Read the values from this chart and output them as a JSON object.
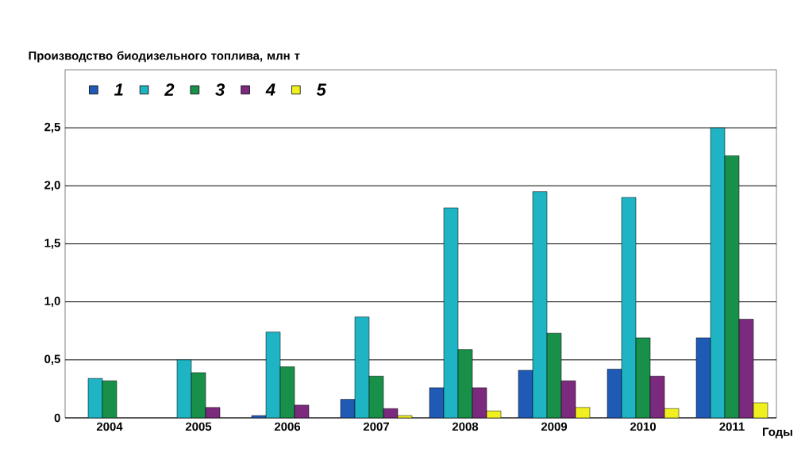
{
  "chart_data": {
    "type": "bar",
    "ylabel": "Производство биодизельного топлива, млн т",
    "xlabel": "Годы",
    "categories": [
      "2004",
      "2005",
      "2006",
      "2007",
      "2008",
      "2009",
      "2010",
      "2011"
    ],
    "series": [
      {
        "name": "1",
        "color": "#1f5bb5",
        "values": [
          null,
          null,
          0.02,
          0.16,
          0.26,
          0.41,
          0.42,
          0.69
        ]
      },
      {
        "name": "2",
        "color": "#1eb4c4",
        "values": [
          0.34,
          0.5,
          0.74,
          0.87,
          1.81,
          1.95,
          1.9,
          2.5
        ]
      },
      {
        "name": "3",
        "color": "#18904a",
        "values": [
          0.32,
          0.39,
          0.44,
          0.36,
          0.59,
          0.73,
          0.69,
          2.26
        ]
      },
      {
        "name": "4",
        "color": "#7b2a7d",
        "values": [
          null,
          0.09,
          0.11,
          0.08,
          0.26,
          0.32,
          0.36,
          0.85
        ]
      },
      {
        "name": "5",
        "color": "#f0f020",
        "values": [
          null,
          null,
          null,
          0.02,
          0.06,
          0.09,
          0.08,
          0.13
        ]
      }
    ],
    "ylim": [
      0,
      3
    ],
    "yticks": [
      0,
      {
        "value": 0.5,
        "label": "0,5"
      },
      {
        "value": 1,
        "label": "1,0"
      },
      {
        "value": 1.5,
        "label": "1,5"
      },
      {
        "value": 2,
        "label": "2,0"
      },
      {
        "value": 2.5,
        "label": "2,5"
      }
    ],
    "grid": "y",
    "legend": "top left"
  }
}
